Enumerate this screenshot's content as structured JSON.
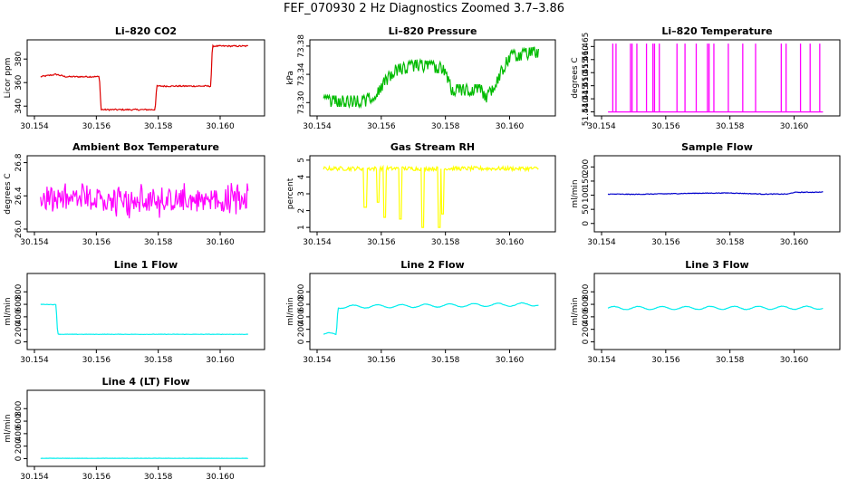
{
  "title": "FEF_070930  2 Hz Diagnostics Zoomed 3.7–3.86",
  "xlim": [
    30.154,
    30.1612
  ],
  "xticks": [
    30.154,
    30.156,
    30.158,
    30.16
  ],
  "xtick_labels": [
    "30.154",
    "30.156",
    "30.158",
    "30.160"
  ],
  "chart_data": [
    {
      "type": "line",
      "title": "Li–820 CO2",
      "ylabel": "Licor ppm",
      "color": "#dd0000",
      "ylim": [
        334,
        394
      ],
      "yticks": [
        340,
        360,
        380
      ],
      "ytick_labels": [
        "340",
        "360",
        "380"
      ],
      "series": [
        {
          "name": "CO2",
          "x": [
            30.1542,
            30.1547,
            30.155,
            30.1561,
            30.15615,
            30.1574,
            30.15745,
            30.1579,
            30.15795,
            30.1597,
            30.15975,
            30.1609
          ],
          "values": [
            365,
            367,
            365,
            365,
            337,
            337,
            337,
            337,
            357,
            357,
            391,
            391
          ]
        }
      ]
    },
    {
      "type": "line",
      "title": "Li–820 Pressure",
      "ylabel": "kPa",
      "color": "#00bb00",
      "ylim": [
        73.285,
        73.385
      ],
      "yticks": [
        73.3,
        73.34,
        73.38
      ],
      "ytick_labels": [
        "73.30",
        "73.34",
        "73.38"
      ],
      "series": [
        {
          "name": "Pressure",
          "x": [
            30.1542,
            30.1555,
            30.1558,
            30.1564,
            30.1571,
            30.1579,
            30.1582,
            30.1591,
            30.1593,
            30.16,
            30.1609
          ],
          "values": [
            73.302,
            73.302,
            73.312,
            73.345,
            73.353,
            73.349,
            73.318,
            73.318,
            73.307,
            73.365,
            73.372
          ]
        }
      ]
    },
    {
      "type": "line",
      "title": "Li–820 Temperature",
      "ylabel": "degrees C",
      "color": "#ff00ff",
      "ylim": [
        51.4395,
        51.4665
      ],
      "yticks": [
        51.44,
        51.445,
        51.45,
        51.455,
        51.46,
        51.465
      ],
      "ytick_labels": [
        "51.440",
        "51.445",
        "51.450",
        "51.455",
        "51.460",
        "51.465"
      ],
      "series": [
        {
          "name": "Temperature",
          "x": [
            30.1542,
            30.1609
          ],
          "values": [
            51.44,
            51.44
          ]
        }
      ]
    },
    {
      "type": "line",
      "title": "Ambient Box Temperature",
      "ylabel": "degrees C",
      "color": "#ff00ff",
      "ylim": [
        26.0,
        26.85
      ],
      "yticks": [
        26.0,
        26.4,
        26.8
      ],
      "ytick_labels": [
        "26.0",
        "26.4",
        "26.8"
      ],
      "series": [
        {
          "name": "Ambient",
          "x": [
            30.1542,
            30.1609
          ],
          "values": [
            26.35,
            26.35
          ]
        }
      ]
    },
    {
      "type": "line",
      "title": "Gas Stream RH",
      "ylabel": "percent",
      "color": "#ffff00",
      "ylim": [
        0.9,
        5.1
      ],
      "yticks": [
        1,
        2,
        3,
        4,
        5
      ],
      "ytick_labels": [
        "1",
        "2",
        "3",
        "4",
        "5"
      ],
      "series": [
        {
          "name": "RH",
          "x": [
            30.1542,
            30.1609
          ],
          "values": [
            4.5,
            4.5
          ]
        }
      ]
    },
    {
      "type": "line",
      "title": "Sample Flow",
      "ylabel": "ml/min",
      "color": "#0000cc",
      "ylim": [
        -20,
        230
      ],
      "yticks": [
        0,
        50,
        100,
        150,
        200
      ],
      "ytick_labels": [
        "0",
        "50",
        "100",
        "150",
        "200"
      ],
      "series": [
        {
          "name": "Sample",
          "x": [
            30.1542,
            30.155,
            30.156,
            30.157,
            30.158,
            30.159,
            30.1598,
            30.16,
            30.1609
          ],
          "values": [
            104,
            103,
            105,
            107,
            108,
            104,
            104,
            110,
            111
          ]
        }
      ]
    },
    {
      "type": "line",
      "title": "Line 1 Flow",
      "ylabel": "ml/min",
      "color": "#00eeee",
      "ylim": [
        -80,
        1050
      ],
      "yticks": [
        0,
        200,
        400,
        600,
        800
      ],
      "ytick_labels": [
        "0",
        "200",
        "400",
        "600",
        "800"
      ],
      "series": [
        {
          "name": "Line 1",
          "x": [
            30.1542,
            30.1547,
            30.15475,
            30.1548,
            30.1609
          ],
          "values": [
            600,
            595,
            130,
            120,
            120
          ]
        }
      ]
    },
    {
      "type": "line",
      "title": "Line 2 Flow",
      "ylabel": "ml/min",
      "color": "#00eeee",
      "ylim": [
        -80,
        1050
      ],
      "yticks": [
        0,
        200,
        400,
        600,
        800
      ],
      "ytick_labels": [
        "0",
        "200",
        "400",
        "600",
        "800"
      ],
      "series": [
        {
          "name": "Line 2",
          "x": [
            30.1542,
            30.1546,
            30.15465,
            30.1609
          ],
          "values": [
            120,
            120,
            560,
            600
          ]
        }
      ]
    },
    {
      "type": "line",
      "title": "Line 3 Flow",
      "ylabel": "ml/min",
      "color": "#00eeee",
      "ylim": [
        -80,
        1050
      ],
      "yticks": [
        0,
        200,
        400,
        600,
        800
      ],
      "ytick_labels": [
        "0",
        "200",
        "400",
        "600",
        "800"
      ],
      "series": [
        {
          "name": "Line 3",
          "x": [
            30.1542,
            30.1609
          ],
          "values": [
            540,
            545
          ]
        }
      ]
    },
    {
      "type": "line",
      "title": "Line 4 (LT) Flow",
      "ylabel": "ml/min",
      "color": "#00eeee",
      "ylim": [
        -80,
        1050
      ],
      "yticks": [
        0,
        200,
        400,
        600,
        800
      ],
      "ytick_labels": [
        "0",
        "200",
        "400",
        "600",
        "800"
      ],
      "series": [
        {
          "name": "Line 4",
          "x": [
            30.1542,
            30.1609
          ],
          "values": [
            5,
            5
          ]
        }
      ]
    }
  ]
}
